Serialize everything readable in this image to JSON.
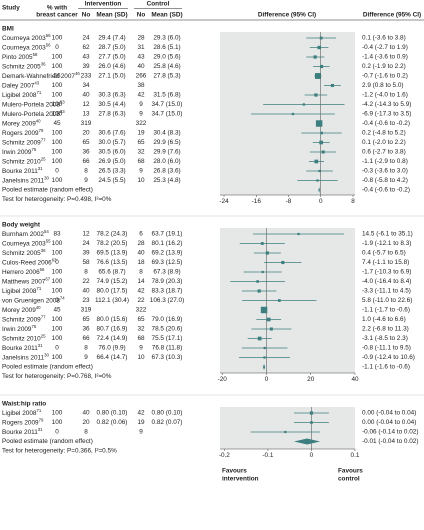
{
  "header": {
    "study": "Study",
    "pct": [
      "% with",
      "breast cancer"
    ],
    "intervention": "Intervention",
    "control": "Control",
    "n": "No",
    "mean": "Mean (SD)",
    "diff_plot": "Difference (95% CI)",
    "diff_text": "Difference (95% CI)"
  },
  "chart_data": [
    {
      "type": "forest",
      "title": "BMI",
      "xlim": [
        -25,
        8.5
      ],
      "xticks": [
        -24,
        -16,
        -8,
        0,
        8
      ],
      "rows": [
        {
          "study": "Courneya 2003",
          "ref": "55",
          "pct": 100,
          "n1": 24,
          "m1": "29.4 (7.4)",
          "n2": 28,
          "m2": "29.3 (6.0)",
          "ci_label": "0.1 (-3.6 to 3.8)",
          "est": 0.1,
          "lo": -3.6,
          "hi": 3.8
        },
        {
          "study": "Courneya 2003",
          "ref": "56",
          "pct": 0,
          "n1": 62,
          "m1": "28.7 (5.0)",
          "n2": 31,
          "m2": "28.6 (5.1)",
          "ci_label": "-0.4 (-2.7 to 1.9)",
          "est": -0.4,
          "lo": -2.7,
          "hi": 1.9
        },
        {
          "study": "Pinto 2005",
          "ref": "58",
          "pct": 100,
          "n1": 43,
          "m1": "27.7 (5.0)",
          "n2": 43,
          "m2": "29.0 (5.6)",
          "ci_label": "-1.4 (-3.6 to 0.9)",
          "est": -1.4,
          "lo": -3.6,
          "hi": 0.9
        },
        {
          "study": "Schmitz 2005",
          "ref": "36",
          "pct": 100,
          "n1": 39,
          "m1": "26.0 (4.6)",
          "n2": 40,
          "m2": "25.8 (4.6)",
          "ci_label": "0.2 (-1.9 to 2.2)",
          "est": 0.2,
          "lo": -1.9,
          "hi": 2.2
        },
        {
          "study": "Demark-Wahnefried 2007",
          "ref": "46",
          "pct": 56,
          "n1": 233,
          "m1": "27.1 (5.0)",
          "n2": 266,
          "m2": "27.8 (5.3)",
          "ci_label": "-0.7 (-1.6 to 0.2)",
          "est": -0.7,
          "lo": -1.6,
          "hi": 0.2
        },
        {
          "study": "Daley 2007",
          "ref": "43",
          "pct": 100,
          "n1": 34,
          "m1": null,
          "n2": 38,
          "m2": null,
          "ci_label": "2.9 (0.8 to 5.0)",
          "est": 2.9,
          "lo": 0.8,
          "hi": 5.0
        },
        {
          "study": "Ligibel 2008",
          "ref": "71",
          "pct": 100,
          "n1": 40,
          "m1": "30.3 (6.3)",
          "n2": 42,
          "m2": "31.5 (6.8)",
          "ci_label": "-1.2 (-4.0 to 1.6)",
          "est": -1.2,
          "lo": -4.0,
          "hi": 1.6
        },
        {
          "study": "Mulero-Portela 2008",
          "ref": "23",
          "pct": 100,
          "n1": 12,
          "m1": "30.5 (4.4)",
          "n2": 9,
          "m2": "34.7 (15.0)",
          "ci_label": "-4.2 (-14.3 to 5.9)",
          "est": -4.2,
          "lo": -14.3,
          "hi": 5.9
        },
        {
          "study": "Mulero-Portela 2008",
          "ref": "23",
          "pct": 100,
          "n1": 13,
          "m1": "27.8 (6.3)",
          "n2": 9,
          "m2": "34.7 (15.0)",
          "ci_label": "-6.9 (-17.3 to 3.5)",
          "est": -6.9,
          "lo": -17.3,
          "hi": 3.5
        },
        {
          "study": "Morey 2009",
          "ref": "40",
          "pct": 45,
          "n1": 319,
          "m1": null,
          "n2": 322,
          "m2": null,
          "ci_label": "-0.4 (-0.6 to -0.2)",
          "est": -0.4,
          "lo": -0.6,
          "hi": -0.2
        },
        {
          "study": "Rogers 2009",
          "ref": "79",
          "pct": 100,
          "n1": 20,
          "m1": "30.6 (7.6)",
          "n2": 19,
          "m2": "30.4 (8.3)",
          "ci_label": "0.2 (-4.8 to 5.2)",
          "est": 0.2,
          "lo": -4.8,
          "hi": 5.2
        },
        {
          "study": "Schmitz 2009",
          "ref": "77",
          "pct": 100,
          "n1": 65,
          "m1": "30.0 (5.7)",
          "n2": 65,
          "m2": "29.9 (6.5)",
          "ci_label": "0.1 (-2.0 to 2.2)",
          "est": 0.1,
          "lo": -2.0,
          "hi": 2.2
        },
        {
          "study": "Irwin 2009",
          "ref": "75",
          "pct": 100,
          "n1": 36,
          "m1": "30.5 (6.0)",
          "n2": 32,
          "m2": "29.9 (7.6)",
          "ci_label": "0.6 (-2.7 to 3.8)",
          "est": 0.6,
          "lo": -2.7,
          "hi": 3.8
        },
        {
          "study": "Schmitz 2010",
          "ref": "25",
          "pct": 100,
          "n1": 66,
          "m1": "26.9 (5.0)",
          "n2": 68,
          "m2": "28.0 (6.0)",
          "ci_label": "-1.1 (-2.9 to 0.8)",
          "est": -1.1,
          "lo": -2.9,
          "hi": 0.8
        },
        {
          "study": "Bourke 2011",
          "ref": "31",
          "pct": 0,
          "n1": 8,
          "m1": "26.5 (3.3)",
          "n2": 9,
          "m2": "26.8 (3.6)",
          "ci_label": "-0.3 (-3.6 to 3.0)",
          "est": -0.3,
          "lo": -3.6,
          "hi": 3.0
        },
        {
          "study": "Janelsins 2011",
          "ref": "30",
          "pct": 100,
          "n1": 9,
          "m1": "24.5 (5.5)",
          "n2": 10,
          "m2": "25.3 (4.8)",
          "ci_label": "-0.8 (-5.8 to 4.2)",
          "est": -0.8,
          "lo": -5.8,
          "hi": 4.2
        }
      ],
      "pooled": {
        "label": "Pooled estimate (random effect)",
        "ci_label": "-0.4 (-0.6 to -0.2)",
        "est": -0.4,
        "lo": -0.6,
        "hi": -0.2
      },
      "heterogeneity": "Test for heterogeneity: P=0.498, I²=0%"
    },
    {
      "type": "forest",
      "title": "Body weight",
      "xlim": [
        -21,
        40
      ],
      "xticks": [
        -20,
        0,
        20,
        40
      ],
      "rows": [
        {
          "study": "Burnham 2002",
          "ref": "54",
          "pct": 83,
          "n1": 12,
          "m1": "78.2 (24.3)",
          "n2": 6,
          "m2": "63.7 (19.1)",
          "ci_label": "14.5 (-6.1 to 35.1)",
          "est": 14.5,
          "lo": -6.1,
          "hi": 35.1
        },
        {
          "study": "Courneya 2003",
          "ref": "55",
          "pct": 100,
          "n1": 24,
          "m1": "78.2 (20.5)",
          "n2": 28,
          "m2": "80.1 (16.2)",
          "ci_label": "-1.9 (-12.1 to 8.3)",
          "est": -1.9,
          "lo": -12.1,
          "hi": 8.3
        },
        {
          "study": "Schmitz 2005",
          "ref": "36",
          "pct": 100,
          "n1": 39,
          "m1": "69.5 (13.9)",
          "n2": 40,
          "m2": "69.2 (13.9)",
          "ci_label": "0.4 (-5.7 to 6.5)",
          "est": 0.4,
          "lo": -5.7,
          "hi": 6.5
        },
        {
          "study": "Culos-Reed 2006",
          "ref": "63",
          "pct": 0,
          "n1": 58,
          "m1": "76.6 (13.5)",
          "n2": 18,
          "m2": "69.3 (12.5)",
          "ci_label": "7.4 (-1.1 to 15.8)",
          "est": 7.4,
          "lo": -1.1,
          "hi": 15.8
        },
        {
          "study": "Herrero 2006",
          "ref": "66",
          "pct": 100,
          "n1": 8,
          "m1": "65.6 (8.7)",
          "n2": 8,
          "m2": "67.3 (8.9)",
          "ci_label": "-1.7 (-10.3 to 6.9)",
          "est": -1.7,
          "lo": -10.3,
          "hi": 6.9
        },
        {
          "study": "Matthews 2007",
          "ref": "67",
          "pct": 100,
          "n1": 22,
          "m1": "74.9 (15.2)",
          "n2": 14,
          "m2": "78.9 (20.3)",
          "ci_label": "-4.0 (-16.4 to 8.4)",
          "est": -4.0,
          "lo": -16.4,
          "hi": 8.4
        },
        {
          "study": "Ligibel 2008",
          "ref": "71",
          "pct": 100,
          "n1": 40,
          "m1": "80.0 (17.5)",
          "n2": 42,
          "m2": "83.3 (18.7)",
          "ci_label": "-3.3 (-11.1 to 4.5)",
          "est": -3.3,
          "lo": -11.1,
          "hi": 4.5
        },
        {
          "study": "von Gruenigen 2008",
          "ref": "74",
          "pct": 0,
          "n1": 23,
          "m1": "112.1 (30.4)",
          "n2": 22,
          "m2": "106.3 (27.0)",
          "ci_label": "5.8 (-11.0 to 22.6)",
          "est": 5.8,
          "lo": -11.0,
          "hi": 22.6
        },
        {
          "study": "Morey 2009",
          "ref": "40",
          "pct": 45,
          "n1": 319,
          "m1": null,
          "n2": 322,
          "m2": null,
          "ci_label": "-1.1 (-1.7 to -0.6)",
          "est": -1.1,
          "lo": -1.7,
          "hi": -0.6
        },
        {
          "study": "Schmitz 2009",
          "ref": "77",
          "pct": 100,
          "n1": 65,
          "m1": "80.0 (15.6)",
          "n2": 65,
          "m2": "79.0 (16.9)",
          "ci_label": "1.0 (-4.6 to 6.6)",
          "est": 1.0,
          "lo": -4.6,
          "hi": 6.6
        },
        {
          "study": "Irwin 2009",
          "ref": "75",
          "pct": 100,
          "n1": 36,
          "m1": "80.7 (16.9)",
          "n2": 32,
          "m2": "78.5 (20.6)",
          "ci_label": "2.2 (-6.8 to 11.3)",
          "est": 2.2,
          "lo": -6.8,
          "hi": 11.3
        },
        {
          "study": "Schmitz 2010",
          "ref": "25",
          "pct": 100,
          "n1": 66,
          "m1": "72.4 (14.9)",
          "n2": 68,
          "m2": "75.5 (17.1)",
          "ci_label": "-3.1 (-8.5 to 2.3)",
          "est": -3.1,
          "lo": -8.5,
          "hi": 2.3
        },
        {
          "study": "Bourke 2011",
          "ref": "31",
          "pct": 0,
          "n1": 8,
          "m1": "76.0 (9.9)",
          "n2": 9,
          "m2": "76.8 (11.8)",
          "ci_label": "-0.8 (-11.1 to 9.5)",
          "est": -0.8,
          "lo": -11.1,
          "hi": 9.5
        },
        {
          "study": "Janelsins 2011",
          "ref": "30",
          "pct": 100,
          "n1": 9,
          "m1": "66.4 (14.7)",
          "n2": 10,
          "m2": "67.3 (10.3)",
          "ci_label": "-0.9 (-12.4 to 10.6)",
          "est": -0.9,
          "lo": -12.4,
          "hi": 10.6
        }
      ],
      "pooled": {
        "label": "Pooled estimate (random effect)",
        "ci_label": "-1.1 (-1.6 to -0.6)",
        "est": -1.1,
        "lo": -1.6,
        "hi": -0.6
      },
      "heterogeneity": "Test for heterogeneity: P=0.768, I²=0%"
    },
    {
      "type": "forest",
      "title": "Waist:hip ratio",
      "xlim": [
        -0.21,
        0.1
      ],
      "xticks": [
        -0.2,
        -0.1,
        0,
        0.1
      ],
      "rows": [
        {
          "study": "Ligibel 2008",
          "ref": "71",
          "pct": 100,
          "n1": 40,
          "m1": "0.80 (0.10)",
          "n2": 42,
          "m2": "0.80 (0.10)",
          "ci_label": "0.00 (-0.04 to 0.04)",
          "est": 0,
          "lo": -0.04,
          "hi": 0.04
        },
        {
          "study": "Rogers 2009",
          "ref": "79",
          "pct": 100,
          "n1": 20,
          "m1": "0.82 (0.06)",
          "n2": 19,
          "m2": "0.82 (0.07)",
          "ci_label": "0.00 (-0.04 to 0.04)",
          "est": 0,
          "lo": -0.04,
          "hi": 0.04
        },
        {
          "study": "Bourke 2011",
          "ref": "31",
          "pct": 0,
          "n1": 8,
          "m1": null,
          "n2": 9,
          "m2": null,
          "ci_label": "-0.06 (-0.14 to 0.02)",
          "est": -0.06,
          "lo": -0.14,
          "hi": 0.02
        }
      ],
      "pooled": {
        "label": "Pooled estimate (random effect)",
        "ci_label": "-0.01 (-0.04 to 0.02)",
        "est": -0.01,
        "lo": -0.04,
        "hi": 0.02
      },
      "heterogeneity": "Test for heterogeneity: P=0.366, I²=0.5%"
    }
  ],
  "footer": {
    "favours_left": [
      "Favours",
      "intervention"
    ],
    "favours_right": [
      "Favours",
      "control"
    ]
  }
}
